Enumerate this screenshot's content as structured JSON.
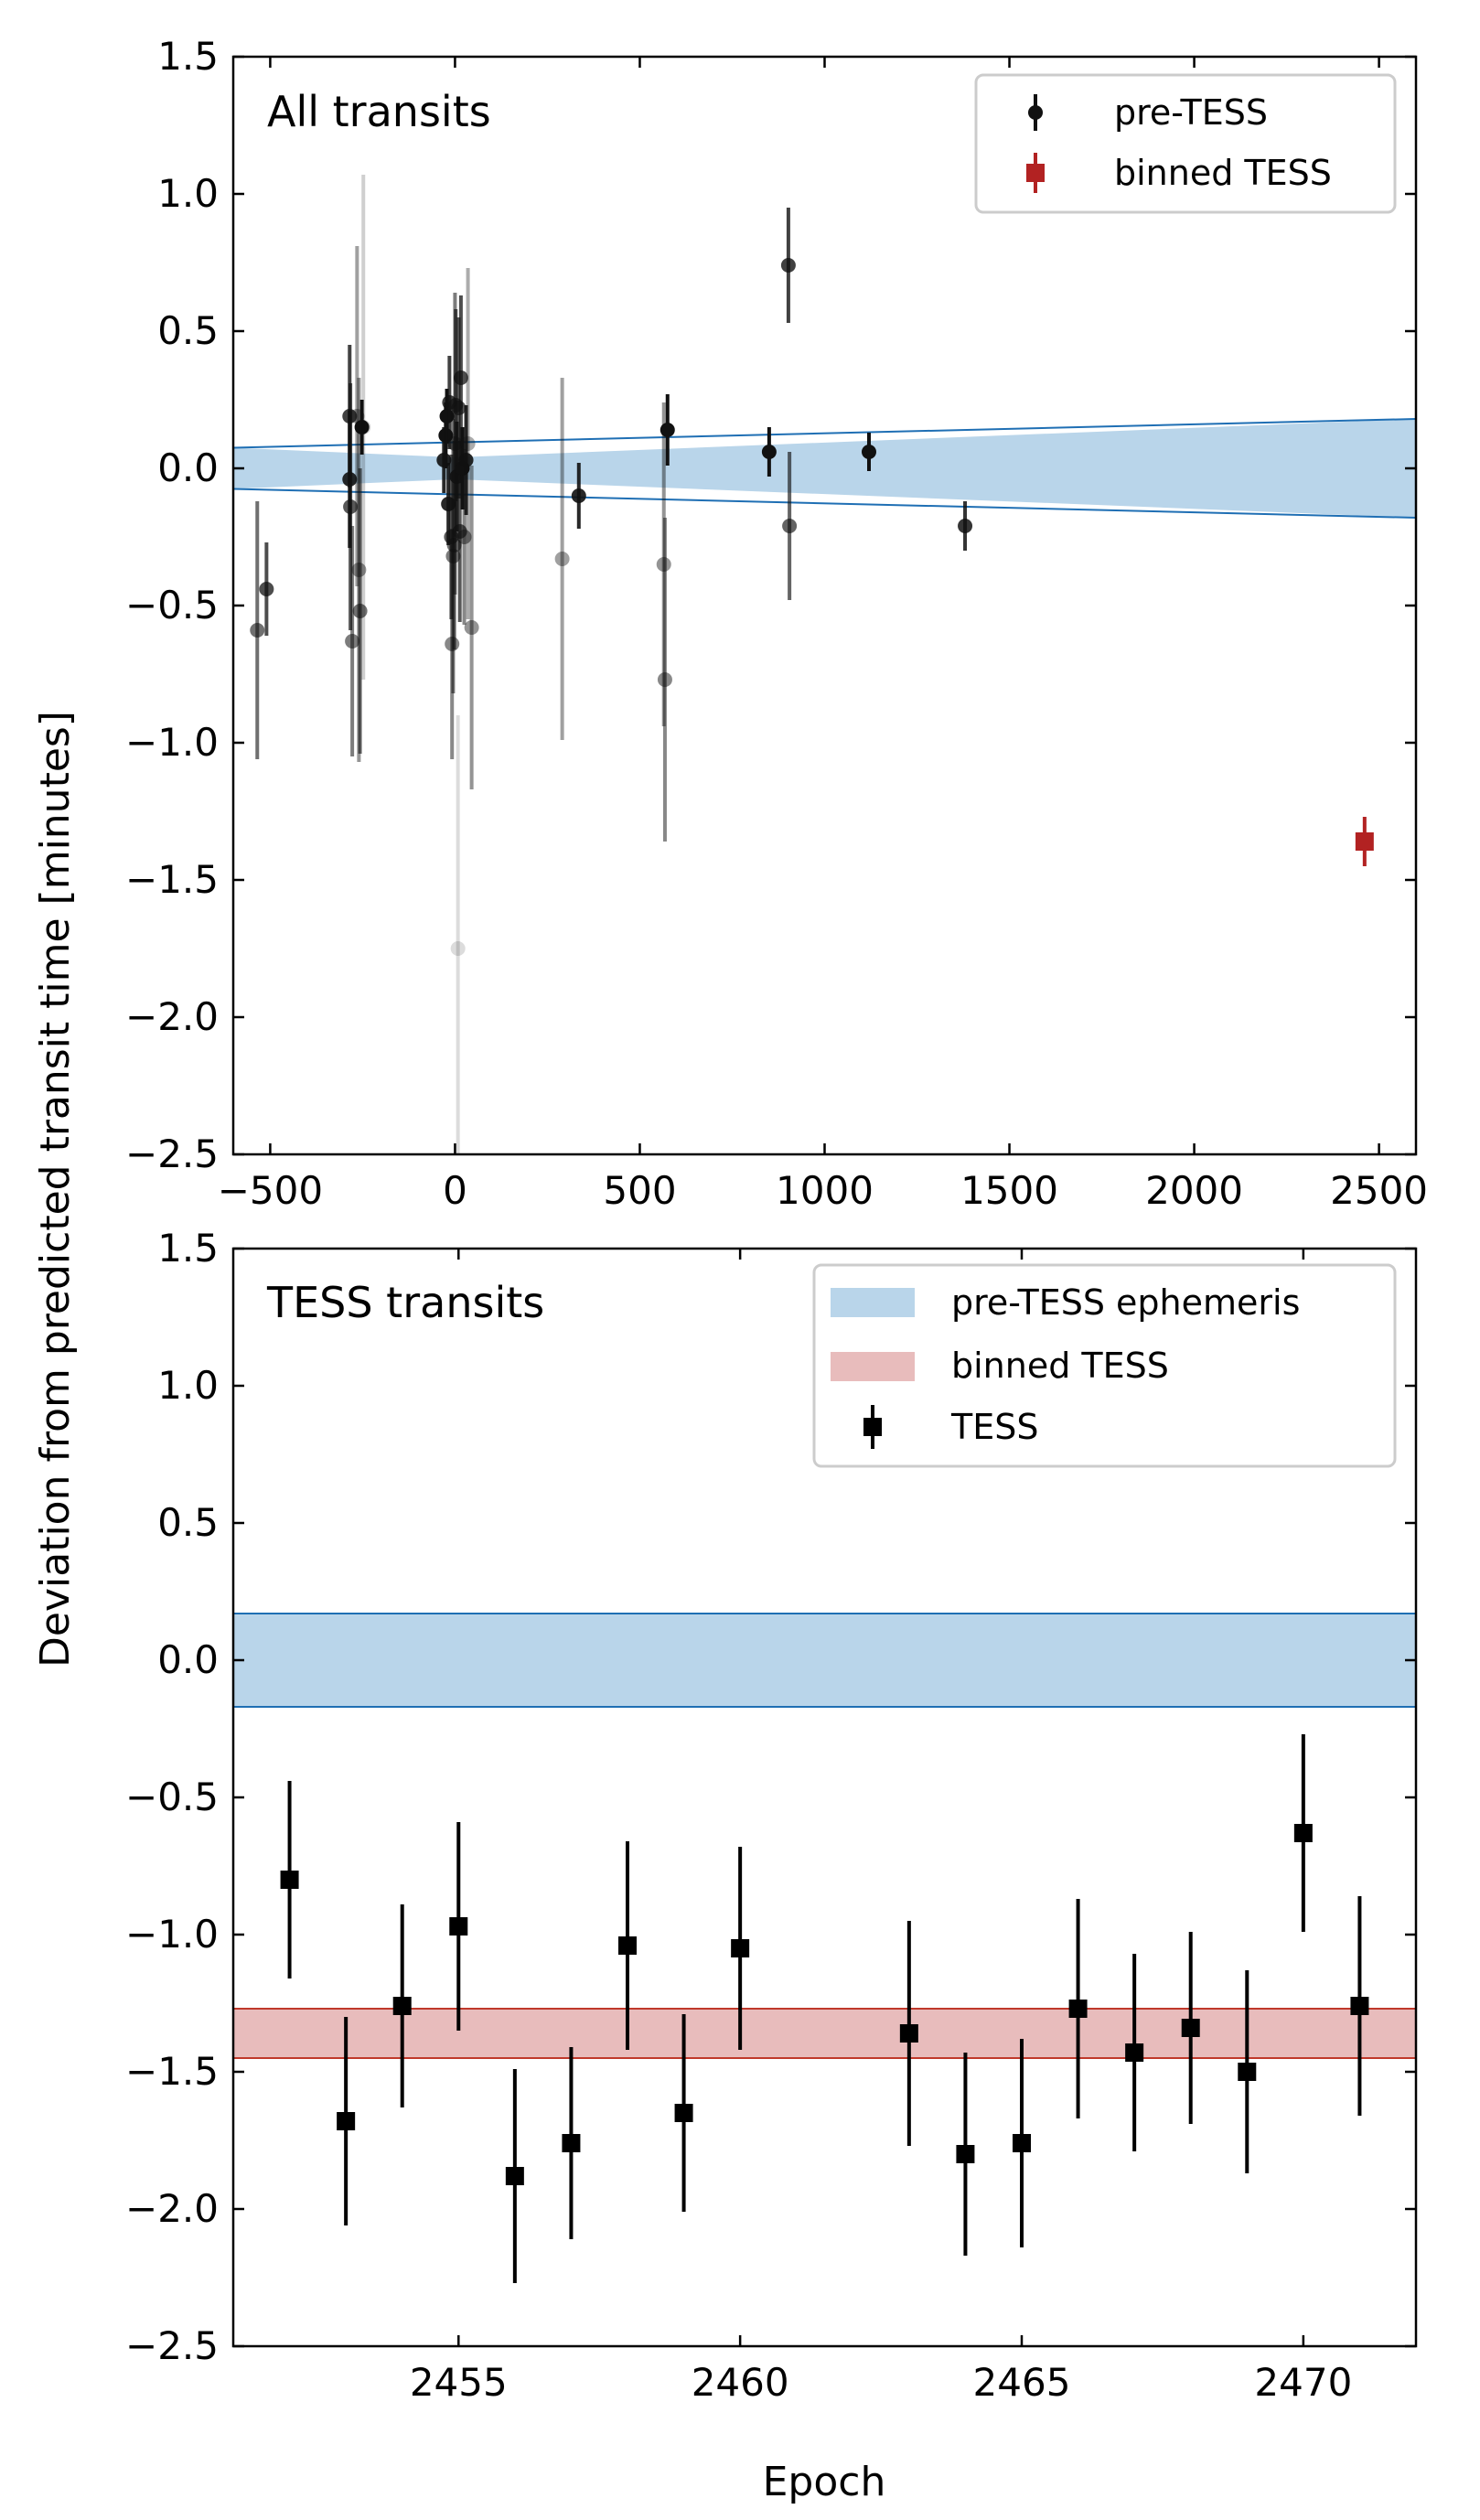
{
  "figure": {
    "ylabel": "Deviation from predicted transit time [minutes]",
    "xlabel": "Epoch"
  },
  "chart_data": [
    {
      "type": "scatter",
      "panel_label": "All transits",
      "xlim": [
        -600,
        2600
      ],
      "ylim": [
        -2.5,
        1.5
      ],
      "xticks": [
        -500,
        0,
        500,
        1000,
        1500,
        2000,
        2500
      ],
      "yticks": [
        -2.5,
        -2.0,
        -1.5,
        -1.0,
        -0.5,
        0.0,
        0.5,
        1.0,
        1.5
      ],
      "legend_placement": "upper right",
      "legend": [
        "pre-TESS",
        "binned TESS"
      ],
      "colors": {
        "pretess": "#111111",
        "binned": "#b22222",
        "band_fill": "#b9d5ea",
        "band_edge": "#1f6fb4"
      },
      "ephemeris_band": {
        "x": [
          -600,
          2600
        ],
        "upper": [
          0.075,
          0.18
        ],
        "lower": [
          -0.075,
          -0.18
        ],
        "pivot_x": 0
      },
      "series": [
        {
          "name": "pre-TESS",
          "marker": "circle",
          "points": [
            {
              "x": -535,
              "y": -0.59,
              "err": 0.47,
              "alpha": 0.6
            },
            {
              "x": -510,
              "y": -0.44,
              "err": 0.17,
              "alpha": 0.75
            },
            {
              "x": -285,
              "y": 0.19,
              "err": 0.26,
              "alpha": 0.8
            },
            {
              "x": -285,
              "y": -0.04,
              "err": 0.25,
              "alpha": 0.9
            },
            {
              "x": -283,
              "y": -0.14,
              "err": 0.45,
              "alpha": 0.7
            },
            {
              "x": -278,
              "y": -0.63,
              "err": 0.42,
              "alpha": 0.55
            },
            {
              "x": -265,
              "y": 0.19,
              "err": 0.62,
              "alpha": 0.4
            },
            {
              "x": -260,
              "y": -0.37,
              "err": 0.7,
              "alpha": 0.45
            },
            {
              "x": -257,
              "y": -0.52,
              "err": 0.52,
              "alpha": 0.6
            },
            {
              "x": -252,
              "y": 0.15,
              "err": 0.1,
              "alpha": 1.0
            },
            {
              "x": -248,
              "y": 0.15,
              "err": 0.92,
              "alpha": 0.2
            },
            {
              "x": -30,
              "y": 0.03,
              "err": 0.12,
              "alpha": 0.9
            },
            {
              "x": -25,
              "y": 0.12,
              "err": 0.12,
              "alpha": 1.0
            },
            {
              "x": -22,
              "y": 0.19,
              "err": 0.1,
              "alpha": 1.0
            },
            {
              "x": -18,
              "y": -0.13,
              "err": 0.15,
              "alpha": 0.9
            },
            {
              "x": -15,
              "y": 0.24,
              "err": 0.17,
              "alpha": 0.8
            },
            {
              "x": -10,
              "y": -0.25,
              "err": 0.3,
              "alpha": 0.7
            },
            {
              "x": -8,
              "y": -0.64,
              "err": 0.42,
              "alpha": 0.5
            },
            {
              "x": -5,
              "y": -0.32,
              "err": 0.5,
              "alpha": 0.55
            },
            {
              "x": -2,
              "y": -0.28,
              "err": 0.38,
              "alpha": 0.6
            },
            {
              "x": 0,
              "y": 0.09,
              "err": 0.55,
              "alpha": 0.55
            },
            {
              "x": 2,
              "y": 0.23,
              "err": 0.35,
              "alpha": 0.7
            },
            {
              "x": 5,
              "y": -0.03,
              "err": 0.2,
              "alpha": 0.9
            },
            {
              "x": 8,
              "y": -1.75,
              "err": 0.85,
              "alpha": 0.15
            },
            {
              "x": 10,
              "y": 0.22,
              "err": 0.33,
              "alpha": 0.7
            },
            {
              "x": 13,
              "y": -0.23,
              "err": 0.33,
              "alpha": 0.7
            },
            {
              "x": 16,
              "y": 0.33,
              "err": 0.3,
              "alpha": 0.75
            },
            {
              "x": 20,
              "y": 0.0,
              "err": 0.15,
              "alpha": 1.0
            },
            {
              "x": 25,
              "y": -0.25,
              "err": 0.32,
              "alpha": 0.5
            },
            {
              "x": 30,
              "y": 0.03,
              "err": 0.2,
              "alpha": 0.9
            },
            {
              "x": 35,
              "y": 0.09,
              "err": 0.64,
              "alpha": 0.35
            },
            {
              "x": 45,
              "y": -0.58,
              "err": 0.59,
              "alpha": 0.45
            },
            {
              "x": 290,
              "y": -0.33,
              "err": 0.66,
              "alpha": 0.4
            },
            {
              "x": 335,
              "y": -0.1,
              "err": 0.12,
              "alpha": 0.9
            },
            {
              "x": 565,
              "y": -0.35,
              "err": 0.59,
              "alpha": 0.45
            },
            {
              "x": 568,
              "y": -0.77,
              "err": 0.59,
              "alpha": 0.5
            },
            {
              "x": 575,
              "y": 0.14,
              "err": 0.13,
              "alpha": 1.0
            },
            {
              "x": 850,
              "y": 0.06,
              "err": 0.09,
              "alpha": 1.0
            },
            {
              "x": 902,
              "y": 0.74,
              "err": 0.21,
              "alpha": 0.8
            },
            {
              "x": 905,
              "y": -0.21,
              "err": 0.27,
              "alpha": 0.65
            },
            {
              "x": 1120,
              "y": 0.06,
              "err": 0.07,
              "alpha": 1.0
            },
            {
              "x": 1380,
              "y": -0.21,
              "err": 0.09,
              "alpha": 0.85
            }
          ]
        },
        {
          "name": "binned TESS",
          "marker": "square",
          "points": [
            {
              "x": 2461,
              "y": -1.36,
              "err": 0.09,
              "alpha": 1.0
            }
          ]
        }
      ]
    },
    {
      "type": "scatter",
      "panel_label": "TESS transits",
      "xlim": [
        2451,
        2472
      ],
      "ylim": [
        -2.5,
        1.5
      ],
      "xticks": [
        2455,
        2460,
        2465,
        2470
      ],
      "yticks": [
        -2.5,
        -2.0,
        -1.5,
        -1.0,
        -0.5,
        0.0,
        0.5,
        1.0,
        1.5
      ],
      "legend_placement": "upper right",
      "legend": [
        "pre-TESS ephemeris",
        "binned TESS",
        "TESS"
      ],
      "colors": {
        "tess": "#000000",
        "eph_fill": "#b9d5ea",
        "eph_edge": "#1f6fb4",
        "bin_fill": "#e8bcbc",
        "bin_edge": "#c0392b"
      },
      "ephemeris_band": {
        "lower": -0.17,
        "upper": 0.17
      },
      "binned_band": {
        "lower": -1.45,
        "upper": -1.27
      },
      "series": [
        {
          "name": "TESS",
          "marker": "square",
          "points": [
            {
              "x": 2452,
              "y": -0.8,
              "err": 0.36
            },
            {
              "x": 2453,
              "y": -1.68,
              "err": 0.38
            },
            {
              "x": 2454,
              "y": -1.26,
              "err": 0.37
            },
            {
              "x": 2455,
              "y": -0.97,
              "err": 0.38
            },
            {
              "x": 2456,
              "y": -1.88,
              "err": 0.39
            },
            {
              "x": 2457,
              "y": -1.76,
              "err": 0.35
            },
            {
              "x": 2458,
              "y": -1.04,
              "err": 0.38
            },
            {
              "x": 2459,
              "y": -1.65,
              "err": 0.36
            },
            {
              "x": 2460,
              "y": -1.05,
              "err": 0.37
            },
            {
              "x": 2463,
              "y": -1.36,
              "err": 0.41
            },
            {
              "x": 2464,
              "y": -1.8,
              "err": 0.37
            },
            {
              "x": 2465,
              "y": -1.76,
              "err": 0.38
            },
            {
              "x": 2466,
              "y": -1.27,
              "err": 0.4
            },
            {
              "x": 2467,
              "y": -1.43,
              "err": 0.36
            },
            {
              "x": 2468,
              "y": -1.34,
              "err": 0.35
            },
            {
              "x": 2469,
              "y": -1.5,
              "err": 0.37
            },
            {
              "x": 2470,
              "y": -0.63,
              "err": 0.36
            },
            {
              "x": 2471,
              "y": -1.26,
              "err": 0.4
            }
          ]
        }
      ]
    }
  ]
}
